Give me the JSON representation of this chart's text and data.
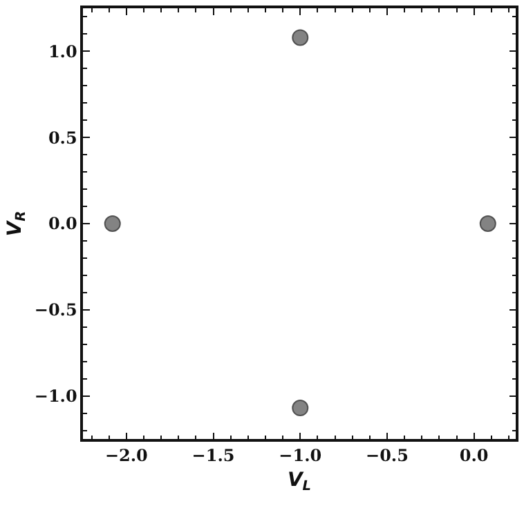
{
  "chart_data": {
    "type": "scatter",
    "xlabel": "V$_{L}$",
    "ylabel": "V$_{R}$",
    "x": [
      -2.08,
      -1.0,
      0.08,
      -1.0
    ],
    "series": [
      {
        "color": "#6e6e6e",
        "values": [
          0,
          1.08,
          0,
          -1.07
        ]
      }
    ],
    "xlim": [
      -2.25,
      0.24
    ],
    "ylim": [
      -1.25,
      1.25
    ],
    "xticks": [
      {
        "value": -2,
        "label": "−2.0"
      },
      {
        "value": -1.5,
        "label": "−1.5"
      },
      {
        "value": -1,
        "label": "−1.0"
      },
      {
        "value": -0.5,
        "label": "−0.5"
      },
      {
        "value": 0,
        "label": "0.0"
      }
    ],
    "yticks": [
      {
        "value": -1,
        "label": "−1.0"
      },
      {
        "value": -0.5,
        "label": "−0.5"
      },
      {
        "value": 0,
        "label": "0.0"
      },
      {
        "value": 0.5,
        "label": "0.5"
      },
      {
        "value": 1,
        "label": "1.0"
      }
    ],
    "grid": false
  }
}
